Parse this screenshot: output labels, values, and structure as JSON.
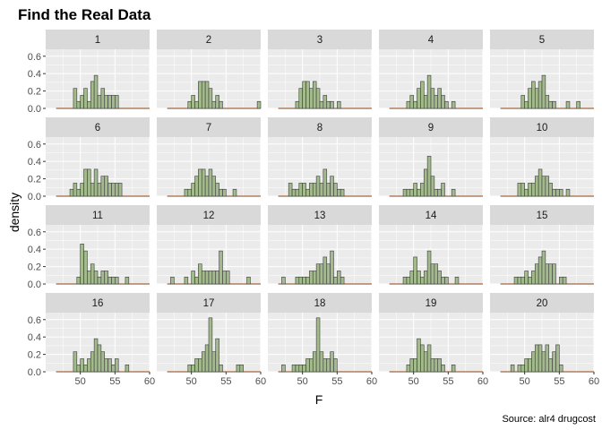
{
  "title": "Find the Real Data",
  "caption": "Source: alr4 drugcost",
  "xlabel": "F",
  "ylabel": "density",
  "colors": {
    "panel_bg": "#ebebeb",
    "grid": "#ffffff",
    "strip_bg": "#d9d9d9",
    "bar_fill": "#a3bb8c",
    "bar_stroke": "#3b3b3b",
    "baseline": "#8b4513"
  },
  "chart_data": {
    "type": "histogram",
    "facet_layout": "5 columns x 4 rows, shared axes",
    "xlim": [
      45,
      60
    ],
    "ylim": [
      0,
      0.68
    ],
    "x_ticks": [
      50,
      55,
      60
    ],
    "x_tick_labels": [
      "50",
      "55",
      "60"
    ],
    "y_ticks": [
      0,
      0.2,
      0.4,
      0.6
    ],
    "y_tick_labels": [
      "0.0",
      "0.2",
      "0.4",
      "0.6"
    ],
    "bin_width": 0.5,
    "bin_start": 46.5,
    "baseline_range": [
      46.5,
      60
    ],
    "panels": [
      {
        "label": "1",
        "bins": [
          [
            49.0,
            0.23
          ],
          [
            49.5,
            0.08
          ],
          [
            50.0,
            0.15
          ],
          [
            50.5,
            0.23
          ],
          [
            51.0,
            0.08
          ],
          [
            51.5,
            0.31
          ],
          [
            52.0,
            0.38
          ],
          [
            52.5,
            0.15
          ],
          [
            53.0,
            0.23
          ],
          [
            53.5,
            0.15
          ],
          [
            54.0,
            0.15
          ],
          [
            54.5,
            0.15
          ],
          [
            55.0,
            0.15
          ]
        ]
      },
      {
        "label": "2",
        "bins": [
          [
            49.5,
            0.08
          ],
          [
            50.0,
            0.15
          ],
          [
            50.5,
            0.08
          ],
          [
            51.0,
            0.31
          ],
          [
            51.5,
            0.31
          ],
          [
            52.0,
            0.31
          ],
          [
            52.5,
            0.23
          ],
          [
            53.0,
            0.08
          ],
          [
            53.5,
            0.15
          ],
          [
            54.0,
            0.08
          ],
          [
            59.5,
            0.08
          ]
        ]
      },
      {
        "label": "3",
        "bins": [
          [
            49.0,
            0.08
          ],
          [
            49.5,
            0.23
          ],
          [
            50.0,
            0.31
          ],
          [
            50.5,
            0.31
          ],
          [
            51.0,
            0.23
          ],
          [
            51.5,
            0.31
          ],
          [
            52.0,
            0.23
          ],
          [
            52.5,
            0.08
          ],
          [
            53.0,
            0.15
          ],
          [
            53.5,
            0.08
          ],
          [
            54.0,
            0.08
          ],
          [
            55.0,
            0.08
          ]
        ]
      },
      {
        "label": "4",
        "bins": [
          [
            49.0,
            0.08
          ],
          [
            49.5,
            0.15
          ],
          [
            50.0,
            0.08
          ],
          [
            50.5,
            0.23
          ],
          [
            51.0,
            0.31
          ],
          [
            51.5,
            0.15
          ],
          [
            52.0,
            0.38
          ],
          [
            52.5,
            0.23
          ],
          [
            53.0,
            0.15
          ],
          [
            53.5,
            0.23
          ],
          [
            54.0,
            0.15
          ],
          [
            54.5,
            0.08
          ],
          [
            55.5,
            0.08
          ]
        ]
      },
      {
        "label": "5",
        "bins": [
          [
            49.5,
            0.15
          ],
          [
            50.0,
            0.08
          ],
          [
            50.5,
            0.23
          ],
          [
            51.0,
            0.31
          ],
          [
            51.5,
            0.23
          ],
          [
            52.0,
            0.31
          ],
          [
            52.5,
            0.38
          ],
          [
            53.0,
            0.15
          ],
          [
            53.5,
            0.08
          ],
          [
            54.0,
            0.08
          ],
          [
            56.0,
            0.08
          ],
          [
            57.5,
            0.08
          ]
        ]
      },
      {
        "label": "6",
        "bins": [
          [
            48.5,
            0.08
          ],
          [
            49.0,
            0.15
          ],
          [
            49.5,
            0.08
          ],
          [
            50.0,
            0.15
          ],
          [
            50.5,
            0.31
          ],
          [
            51.0,
            0.31
          ],
          [
            51.5,
            0.15
          ],
          [
            52.0,
            0.31
          ],
          [
            52.5,
            0.15
          ],
          [
            53.0,
            0.23
          ],
          [
            53.5,
            0.23
          ],
          [
            54.0,
            0.15
          ],
          [
            54.5,
            0.15
          ],
          [
            55.0,
            0.15
          ],
          [
            55.5,
            0.15
          ]
        ]
      },
      {
        "label": "7",
        "bins": [
          [
            49.0,
            0.08
          ],
          [
            49.5,
            0.08
          ],
          [
            50.0,
            0.15
          ],
          [
            50.5,
            0.23
          ],
          [
            51.0,
            0.31
          ],
          [
            51.5,
            0.31
          ],
          [
            52.0,
            0.23
          ],
          [
            52.5,
            0.31
          ],
          [
            53.0,
            0.23
          ],
          [
            53.5,
            0.15
          ],
          [
            54.0,
            0.08
          ],
          [
            54.5,
            0.08
          ],
          [
            56.0,
            0.08
          ]
        ]
      },
      {
        "label": "8",
        "bins": [
          [
            48.0,
            0.15
          ],
          [
            48.5,
            0.08
          ],
          [
            49.0,
            0.08
          ],
          [
            49.5,
            0.15
          ],
          [
            50.0,
            0.15
          ],
          [
            50.5,
            0.08
          ],
          [
            51.0,
            0.15
          ],
          [
            51.5,
            0.15
          ],
          [
            52.0,
            0.23
          ],
          [
            52.5,
            0.15
          ],
          [
            53.0,
            0.31
          ],
          [
            53.5,
            0.15
          ],
          [
            54.0,
            0.23
          ],
          [
            54.5,
            0.15
          ],
          [
            55.0,
            0.08
          ],
          [
            55.5,
            0.08
          ]
        ]
      },
      {
        "label": "9",
        "bins": [
          [
            48.5,
            0.08
          ],
          [
            49.0,
            0.08
          ],
          [
            49.5,
            0.08
          ],
          [
            50.0,
            0.15
          ],
          [
            50.5,
            0.08
          ],
          [
            51.0,
            0.15
          ],
          [
            51.5,
            0.31
          ],
          [
            52.0,
            0.46
          ],
          [
            52.5,
            0.23
          ],
          [
            53.0,
            0.08
          ],
          [
            53.5,
            0.08
          ],
          [
            54.0,
            0.15
          ],
          [
            55.5,
            0.08
          ]
        ]
      },
      {
        "label": "10",
        "bins": [
          [
            49.0,
            0.15
          ],
          [
            49.5,
            0.15
          ],
          [
            50.0,
            0.08
          ],
          [
            50.5,
            0.15
          ],
          [
            51.0,
            0.15
          ],
          [
            51.5,
            0.23
          ],
          [
            52.0,
            0.31
          ],
          [
            52.5,
            0.23
          ],
          [
            53.0,
            0.23
          ],
          [
            53.5,
            0.15
          ],
          [
            54.0,
            0.08
          ],
          [
            54.5,
            0.08
          ],
          [
            55.0,
            0.08
          ],
          [
            56.0,
            0.08
          ]
        ]
      },
      {
        "label": "11",
        "bins": [
          [
            49.5,
            0.08
          ],
          [
            50.0,
            0.46
          ],
          [
            50.5,
            0.38
          ],
          [
            51.0,
            0.15
          ],
          [
            51.5,
            0.23
          ],
          [
            52.0,
            0.15
          ],
          [
            52.5,
            0.08
          ],
          [
            53.0,
            0.15
          ],
          [
            53.5,
            0.15
          ],
          [
            54.0,
            0.08
          ],
          [
            54.5,
            0.08
          ],
          [
            55.0,
            0.08
          ],
          [
            56.5,
            0.08
          ]
        ]
      },
      {
        "label": "12",
        "bins": [
          [
            47.0,
            0.08
          ],
          [
            49.0,
            0.08
          ],
          [
            50.0,
            0.15
          ],
          [
            50.5,
            0.08
          ],
          [
            51.0,
            0.23
          ],
          [
            51.5,
            0.15
          ],
          [
            52.0,
            0.15
          ],
          [
            52.5,
            0.15
          ],
          [
            53.0,
            0.15
          ],
          [
            53.5,
            0.15
          ],
          [
            54.0,
            0.38
          ],
          [
            54.5,
            0.15
          ],
          [
            55.0,
            0.15
          ],
          [
            58.0,
            0.08
          ]
        ]
      },
      {
        "label": "13",
        "bins": [
          [
            47.0,
            0.08
          ],
          [
            49.0,
            0.08
          ],
          [
            49.5,
            0.08
          ],
          [
            50.0,
            0.08
          ],
          [
            50.5,
            0.08
          ],
          [
            51.0,
            0.15
          ],
          [
            51.5,
            0.15
          ],
          [
            52.0,
            0.23
          ],
          [
            52.5,
            0.23
          ],
          [
            53.0,
            0.31
          ],
          [
            53.5,
            0.23
          ],
          [
            54.0,
            0.38
          ],
          [
            54.5,
            0.08
          ],
          [
            55.0,
            0.15
          ],
          [
            55.5,
            0.08
          ]
        ]
      },
      {
        "label": "14",
        "bins": [
          [
            48.5,
            0.08
          ],
          [
            49.0,
            0.08
          ],
          [
            49.5,
            0.15
          ],
          [
            50.0,
            0.31
          ],
          [
            50.5,
            0.15
          ],
          [
            51.0,
            0.08
          ],
          [
            51.5,
            0.15
          ],
          [
            52.0,
            0.38
          ],
          [
            52.5,
            0.23
          ],
          [
            53.0,
            0.23
          ],
          [
            53.5,
            0.15
          ],
          [
            54.0,
            0.08
          ],
          [
            54.5,
            0.08
          ],
          [
            56.0,
            0.08
          ]
        ]
      },
      {
        "label": "15",
        "bins": [
          [
            48.5,
            0.08
          ],
          [
            49.0,
            0.08
          ],
          [
            49.5,
            0.08
          ],
          [
            50.0,
            0.15
          ],
          [
            50.5,
            0.08
          ],
          [
            51.0,
            0.15
          ],
          [
            51.5,
            0.23
          ],
          [
            52.0,
            0.31
          ],
          [
            52.5,
            0.38
          ],
          [
            53.0,
            0.23
          ],
          [
            53.5,
            0.23
          ],
          [
            54.0,
            0.23
          ],
          [
            55.0,
            0.08
          ],
          [
            55.5,
            0.08
          ]
        ]
      },
      {
        "label": "16",
        "bins": [
          [
            49.0,
            0.23
          ],
          [
            49.5,
            0.08
          ],
          [
            50.0,
            0.15
          ],
          [
            50.5,
            0.08
          ],
          [
            51.0,
            0.15
          ],
          [
            51.5,
            0.23
          ],
          [
            52.0,
            0.38
          ],
          [
            52.5,
            0.31
          ],
          [
            53.0,
            0.23
          ],
          [
            53.5,
            0.15
          ],
          [
            54.0,
            0.15
          ],
          [
            54.5,
            0.08
          ],
          [
            55.0,
            0.15
          ],
          [
            56.5,
            0.08
          ]
        ]
      },
      {
        "label": "17",
        "bins": [
          [
            49.5,
            0.08
          ],
          [
            50.0,
            0.08
          ],
          [
            50.5,
            0.15
          ],
          [
            51.0,
            0.15
          ],
          [
            51.5,
            0.23
          ],
          [
            52.0,
            0.31
          ],
          [
            52.5,
            0.62
          ],
          [
            53.0,
            0.23
          ],
          [
            53.5,
            0.38
          ],
          [
            54.0,
            0.08
          ],
          [
            56.5,
            0.08
          ],
          [
            57.0,
            0.08
          ]
        ]
      },
      {
        "label": "18",
        "bins": [
          [
            47.0,
            0.08
          ],
          [
            48.5,
            0.08
          ],
          [
            49.0,
            0.08
          ],
          [
            49.5,
            0.08
          ],
          [
            50.0,
            0.08
          ],
          [
            50.5,
            0.15
          ],
          [
            51.0,
            0.15
          ],
          [
            51.5,
            0.23
          ],
          [
            52.0,
            0.62
          ],
          [
            52.5,
            0.23
          ],
          [
            53.0,
            0.15
          ],
          [
            53.5,
            0.15
          ],
          [
            54.0,
            0.23
          ],
          [
            54.5,
            0.15
          ]
        ]
      },
      {
        "label": "19",
        "bins": [
          [
            49.0,
            0.08
          ],
          [
            49.5,
            0.15
          ],
          [
            50.0,
            0.15
          ],
          [
            50.5,
            0.38
          ],
          [
            51.0,
            0.31
          ],
          [
            51.5,
            0.23
          ],
          [
            52.0,
            0.31
          ],
          [
            52.5,
            0.15
          ],
          [
            53.0,
            0.15
          ],
          [
            53.5,
            0.15
          ],
          [
            54.0,
            0.08
          ],
          [
            55.5,
            0.08
          ]
        ]
      },
      {
        "label": "20",
        "bins": [
          [
            48.0,
            0.08
          ],
          [
            49.0,
            0.08
          ],
          [
            49.5,
            0.08
          ],
          [
            50.0,
            0.15
          ],
          [
            50.5,
            0.15
          ],
          [
            51.0,
            0.23
          ],
          [
            51.5,
            0.31
          ],
          [
            52.0,
            0.31
          ],
          [
            52.5,
            0.23
          ],
          [
            53.0,
            0.31
          ],
          [
            53.5,
            0.15
          ],
          [
            54.0,
            0.23
          ],
          [
            54.5,
            0.31
          ],
          [
            55.0,
            0.08
          ]
        ]
      }
    ]
  }
}
